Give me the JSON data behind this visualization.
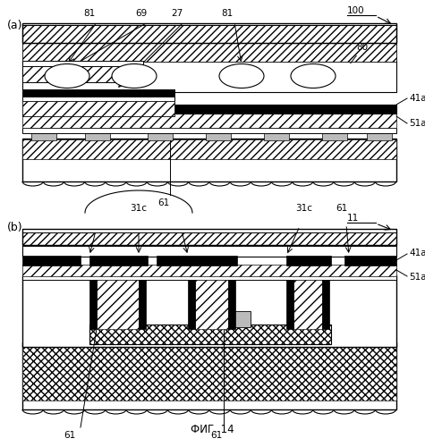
{
  "fig_label": "ФИГ. 14",
  "panel_a_label": "(a)",
  "panel_b_label": "(b)",
  "bg_color": "#ffffff"
}
